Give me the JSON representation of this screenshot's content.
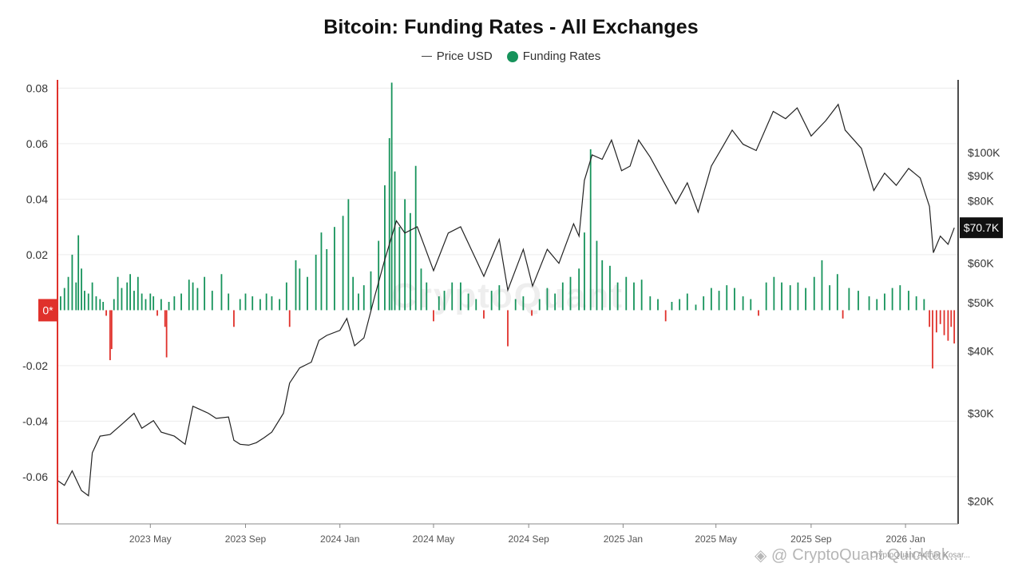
{
  "title": "Bitcoin: Funding Rates - All Exchanges",
  "legend": [
    {
      "label": "Price USD",
      "color": "#444444"
    },
    {
      "label": "Funding Rates",
      "color": "#16935b"
    }
  ],
  "watermark": "CryptoQuant Quicktak...",
  "watermark_sub": "CryptoQuant Author Kosar...",
  "center_watermark": "CryptoQuant",
  "colors": {
    "positive": "#16935b",
    "negative": "#e0312b",
    "price": "#222222",
    "zero_badge": "#e0312b"
  },
  "chart_data": {
    "type": "bar",
    "title": "Bitcoin: Funding Rates - All Exchanges",
    "x_range": [
      "2023-01",
      "2026-03"
    ],
    "left_axis": {
      "ticks": [
        "0.08",
        "0.06",
        "0.04",
        "0.02",
        "0*",
        "-0.02",
        "-0.04",
        "-0.06"
      ],
      "ylim": [
        -0.077,
        0.083
      ]
    },
    "right_axis": {
      "scale": "log",
      "ticks": [
        "$100K",
        "$90K",
        "$80K",
        "$70.7K",
        "$60K",
        "$50K",
        "$40K",
        "$30K",
        "$20K"
      ],
      "current_price_label": "$70.7K"
    },
    "x_ticks": [
      "2023 May",
      "2023 Sep",
      "2024 Jan",
      "2024 May",
      "2024 Sep",
      "2025 Jan",
      "2025 May",
      "2025 Sep",
      "2026 Jan"
    ],
    "series": [
      {
        "name": "Funding Rates",
        "type": "bar",
        "points": [
          [
            "2023-01-05",
            0.005
          ],
          [
            "2023-01-10",
            0.008
          ],
          [
            "2023-01-15",
            0.012
          ],
          [
            "2023-01-20",
            0.02
          ],
          [
            "2023-01-25",
            0.01
          ],
          [
            "2023-01-28",
            0.027
          ],
          [
            "2023-02-01",
            0.015
          ],
          [
            "2023-02-05",
            0.007
          ],
          [
            "2023-02-10",
            0.006
          ],
          [
            "2023-02-15",
            0.01
          ],
          [
            "2023-02-20",
            0.005
          ],
          [
            "2023-02-25",
            0.004
          ],
          [
            "2023-03-01",
            0.003
          ],
          [
            "2023-03-05",
            -0.002
          ],
          [
            "2023-03-10",
            -0.018
          ],
          [
            "2023-03-12",
            -0.014
          ],
          [
            "2023-03-15",
            0.004
          ],
          [
            "2023-03-20",
            0.012
          ],
          [
            "2023-03-25",
            0.008
          ],
          [
            "2023-04-01",
            0.01
          ],
          [
            "2023-04-05",
            0.013
          ],
          [
            "2023-04-10",
            0.007
          ],
          [
            "2023-04-15",
            0.012
          ],
          [
            "2023-04-20",
            0.006
          ],
          [
            "2023-04-25",
            0.004
          ],
          [
            "2023-05-01",
            0.006
          ],
          [
            "2023-05-05",
            0.005
          ],
          [
            "2023-05-10",
            -0.002
          ],
          [
            "2023-05-15",
            0.004
          ],
          [
            "2023-05-20",
            -0.006
          ],
          [
            "2023-05-22",
            -0.017
          ],
          [
            "2023-05-25",
            0.003
          ],
          [
            "2023-06-01",
            0.005
          ],
          [
            "2023-06-10",
            0.006
          ],
          [
            "2023-06-20",
            0.011
          ],
          [
            "2023-06-25",
            0.01
          ],
          [
            "2023-07-01",
            0.008
          ],
          [
            "2023-07-10",
            0.012
          ],
          [
            "2023-07-20",
            0.007
          ],
          [
            "2023-08-01",
            0.013
          ],
          [
            "2023-08-10",
            0.006
          ],
          [
            "2023-08-17",
            -0.006
          ],
          [
            "2023-08-25",
            0.004
          ],
          [
            "2023-09-01",
            0.006
          ],
          [
            "2023-09-10",
            0.005
          ],
          [
            "2023-09-20",
            0.004
          ],
          [
            "2023-09-28",
            0.006
          ],
          [
            "2023-10-05",
            0.005
          ],
          [
            "2023-10-15",
            0.004
          ],
          [
            "2023-10-24",
            0.01
          ],
          [
            "2023-10-28",
            -0.006
          ],
          [
            "2023-11-05",
            0.018
          ],
          [
            "2023-11-10",
            0.015
          ],
          [
            "2023-11-20",
            0.012
          ],
          [
            "2023-12-01",
            0.02
          ],
          [
            "2023-12-08",
            0.028
          ],
          [
            "2023-12-15",
            0.022
          ],
          [
            "2023-12-25",
            0.03
          ],
          [
            "2024-01-05",
            0.034
          ],
          [
            "2024-01-12",
            0.04
          ],
          [
            "2024-01-18",
            0.012
          ],
          [
            "2024-01-25",
            0.006
          ],
          [
            "2024-02-01",
            0.009
          ],
          [
            "2024-02-10",
            0.014
          ],
          [
            "2024-02-20",
            0.025
          ],
          [
            "2024-02-28",
            0.045
          ],
          [
            "2024-03-05",
            0.062
          ],
          [
            "2024-03-08",
            0.082
          ],
          [
            "2024-03-12",
            0.05
          ],
          [
            "2024-03-18",
            0.03
          ],
          [
            "2024-03-25",
            0.04
          ],
          [
            "2024-04-01",
            0.035
          ],
          [
            "2024-04-08",
            0.052
          ],
          [
            "2024-04-15",
            0.015
          ],
          [
            "2024-04-22",
            0.01
          ],
          [
            "2024-05-01",
            -0.004
          ],
          [
            "2024-05-08",
            0.005
          ],
          [
            "2024-05-15",
            0.007
          ],
          [
            "2024-05-25",
            0.01
          ],
          [
            "2024-06-05",
            0.01
          ],
          [
            "2024-06-15",
            0.006
          ],
          [
            "2024-06-25",
            0.004
          ],
          [
            "2024-07-05",
            -0.003
          ],
          [
            "2024-07-15",
            0.007
          ],
          [
            "2024-07-25",
            0.009
          ],
          [
            "2024-08-05",
            -0.013
          ],
          [
            "2024-08-15",
            0.004
          ],
          [
            "2024-08-25",
            0.005
          ],
          [
            "2024-09-05",
            -0.002
          ],
          [
            "2024-09-15",
            0.004
          ],
          [
            "2024-09-25",
            0.008
          ],
          [
            "2024-10-05",
            0.006
          ],
          [
            "2024-10-15",
            0.01
          ],
          [
            "2024-10-25",
            0.012
          ],
          [
            "2024-11-05",
            0.015
          ],
          [
            "2024-11-12",
            0.028
          ],
          [
            "2024-11-20",
            0.058
          ],
          [
            "2024-11-28",
            0.025
          ],
          [
            "2024-12-05",
            0.018
          ],
          [
            "2024-12-15",
            0.016
          ],
          [
            "2024-12-25",
            0.01
          ],
          [
            "2025-01-05",
            0.012
          ],
          [
            "2025-01-15",
            0.01
          ],
          [
            "2025-01-25",
            0.011
          ],
          [
            "2025-02-05",
            0.005
          ],
          [
            "2025-02-15",
            0.004
          ],
          [
            "2025-02-25",
            -0.004
          ],
          [
            "2025-03-05",
            0.003
          ],
          [
            "2025-03-15",
            0.004
          ],
          [
            "2025-03-25",
            0.006
          ],
          [
            "2025-04-05",
            0.002
          ],
          [
            "2025-04-15",
            0.005
          ],
          [
            "2025-04-25",
            0.008
          ],
          [
            "2025-05-05",
            0.007
          ],
          [
            "2025-05-15",
            0.009
          ],
          [
            "2025-05-25",
            0.008
          ],
          [
            "2025-06-05",
            0.005
          ],
          [
            "2025-06-15",
            0.004
          ],
          [
            "2025-06-25",
            -0.002
          ],
          [
            "2025-07-05",
            0.01
          ],
          [
            "2025-07-15",
            0.012
          ],
          [
            "2025-07-25",
            0.01
          ],
          [
            "2025-08-05",
            0.009
          ],
          [
            "2025-08-15",
            0.01
          ],
          [
            "2025-08-25",
            0.008
          ],
          [
            "2025-09-05",
            0.012
          ],
          [
            "2025-09-15",
            0.018
          ],
          [
            "2025-09-25",
            0.009
          ],
          [
            "2025-10-05",
            0.013
          ],
          [
            "2025-10-12",
            -0.003
          ],
          [
            "2025-10-20",
            0.008
          ],
          [
            "2025-11-01",
            0.007
          ],
          [
            "2025-11-15",
            0.005
          ],
          [
            "2025-11-25",
            0.004
          ],
          [
            "2025-12-05",
            0.006
          ],
          [
            "2025-12-15",
            0.008
          ],
          [
            "2025-12-25",
            0.009
          ],
          [
            "2026-01-05",
            0.007
          ],
          [
            "2026-01-15",
            0.005
          ],
          [
            "2026-01-25",
            0.004
          ],
          [
            "2026-02-01",
            -0.006
          ],
          [
            "2026-02-05",
            -0.021
          ],
          [
            "2026-02-10",
            -0.008
          ],
          [
            "2026-02-15",
            -0.005
          ],
          [
            "2026-02-20",
            -0.009
          ],
          [
            "2026-02-25",
            -0.011
          ],
          [
            "2026-03-01",
            -0.006
          ],
          [
            "2026-03-05",
            -0.012
          ]
        ]
      },
      {
        "name": "Price USD",
        "type": "line",
        "points": [
          [
            "2023-01-01",
            22000
          ],
          [
            "2023-01-10",
            21500
          ],
          [
            "2023-01-20",
            23000
          ],
          [
            "2023-02-01",
            21000
          ],
          [
            "2023-02-10",
            20500
          ],
          [
            "2023-02-15",
            25000
          ],
          [
            "2023-02-25",
            27000
          ],
          [
            "2023-03-10",
            27200
          ],
          [
            "2023-03-25",
            28500
          ],
          [
            "2023-04-10",
            30000
          ],
          [
            "2023-04-20",
            28000
          ],
          [
            "2023-05-05",
            29000
          ],
          [
            "2023-05-15",
            27500
          ],
          [
            "2023-06-01",
            27000
          ],
          [
            "2023-06-15",
            26000
          ],
          [
            "2023-06-25",
            31000
          ],
          [
            "2023-07-05",
            30500
          ],
          [
            "2023-07-15",
            30000
          ],
          [
            "2023-07-25",
            29300
          ],
          [
            "2023-08-10",
            29500
          ],
          [
            "2023-08-17",
            26500
          ],
          [
            "2023-08-25",
            26000
          ],
          [
            "2023-09-05",
            25900
          ],
          [
            "2023-09-15",
            26200
          ],
          [
            "2023-09-25",
            26800
          ],
          [
            "2023-10-05",
            27500
          ],
          [
            "2023-10-20",
            30000
          ],
          [
            "2023-10-28",
            34500
          ],
          [
            "2023-11-10",
            37000
          ],
          [
            "2023-11-25",
            38000
          ],
          [
            "2023-12-05",
            42000
          ],
          [
            "2023-12-15",
            43000
          ],
          [
            "2024-01-01",
            44000
          ],
          [
            "2024-01-10",
            46500
          ],
          [
            "2024-01-20",
            41000
          ],
          [
            "2024-02-01",
            42500
          ],
          [
            "2024-02-15",
            51500
          ],
          [
            "2024-02-28",
            61000
          ],
          [
            "2024-03-14",
            73000
          ],
          [
            "2024-03-25",
            69000
          ],
          [
            "2024-04-10",
            71000
          ],
          [
            "2024-04-20",
            64500
          ],
          [
            "2024-05-01",
            58000
          ],
          [
            "2024-05-20",
            69000
          ],
          [
            "2024-06-05",
            71000
          ],
          [
            "2024-06-25",
            61000
          ],
          [
            "2024-07-05",
            56500
          ],
          [
            "2024-07-25",
            67000
          ],
          [
            "2024-08-05",
            53000
          ],
          [
            "2024-08-25",
            64000
          ],
          [
            "2024-09-06",
            54000
          ],
          [
            "2024-09-25",
            64000
          ],
          [
            "2024-10-10",
            60000
          ],
          [
            "2024-10-29",
            72000
          ],
          [
            "2024-11-05",
            68000
          ],
          [
            "2024-11-12",
            88000
          ],
          [
            "2024-11-22",
            99000
          ],
          [
            "2024-12-05",
            97000
          ],
          [
            "2024-12-17",
            106000
          ],
          [
            "2024-12-30",
            92000
          ],
          [
            "2025-01-10",
            94000
          ],
          [
            "2025-01-21",
            106000
          ],
          [
            "2025-02-05",
            98000
          ],
          [
            "2025-02-25",
            86000
          ],
          [
            "2025-03-10",
            79000
          ],
          [
            "2025-03-25",
            87000
          ],
          [
            "2025-04-08",
            76000
          ],
          [
            "2025-04-25",
            94000
          ],
          [
            "2025-05-10",
            103000
          ],
          [
            "2025-05-22",
            111000
          ],
          [
            "2025-06-05",
            104000
          ],
          [
            "2025-06-22",
            101000
          ],
          [
            "2025-07-14",
            121000
          ],
          [
            "2025-07-30",
            117000
          ],
          [
            "2025-08-14",
            123000
          ],
          [
            "2025-09-01",
            108000
          ],
          [
            "2025-09-20",
            116000
          ],
          [
            "2025-10-06",
            125000
          ],
          [
            "2025-10-15",
            111000
          ],
          [
            "2025-11-05",
            102000
          ],
          [
            "2025-11-21",
            84000
          ],
          [
            "2025-12-05",
            91000
          ],
          [
            "2025-12-20",
            86000
          ],
          [
            "2026-01-05",
            93000
          ],
          [
            "2026-01-20",
            89000
          ],
          [
            "2026-02-01",
            78000
          ],
          [
            "2026-02-06",
            63000
          ],
          [
            "2026-02-15",
            68000
          ],
          [
            "2026-02-25",
            65500
          ],
          [
            "2026-03-05",
            70700
          ]
        ]
      }
    ]
  }
}
